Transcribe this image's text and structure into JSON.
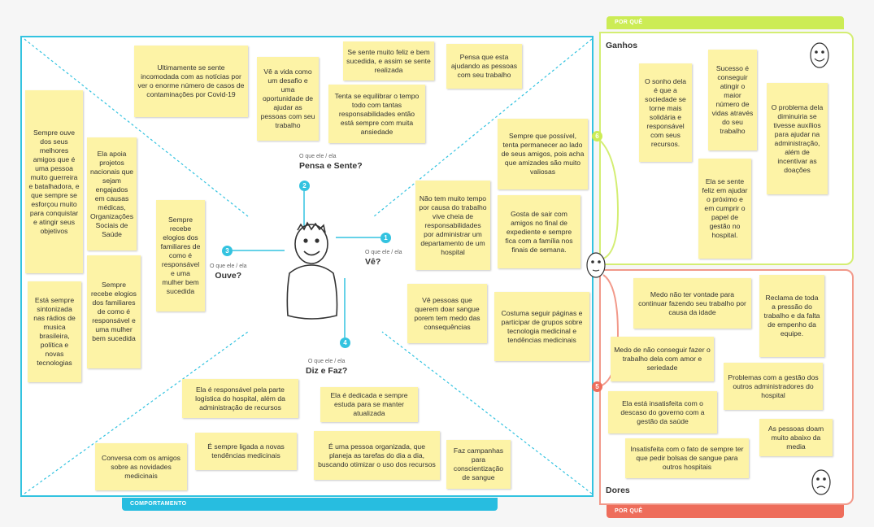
{
  "bars": {
    "por_que_top": "POR QUÊ",
    "por_que_bottom": "POR QUÊ",
    "comportamento": "COMPORTAMENTO"
  },
  "gains": {
    "title": "Ganhos"
  },
  "pains": {
    "title": "Dores"
  },
  "quadrants": {
    "pensa": {
      "label": "O que ele / ela",
      "title": "Pensa e Sente?",
      "num": "2"
    },
    "ve": {
      "label": "O que ele / ela",
      "title": "Vê?",
      "num": "1"
    },
    "ouve": {
      "label": "O que ele / ela",
      "title": "Ouve?",
      "num": "3"
    },
    "diz": {
      "label": "O que ele / ela",
      "title": "Diz e Faz?",
      "num": "4"
    },
    "ganhos_num": "6",
    "dores_num": "5"
  },
  "notes": {
    "n01": "Ultimamente se sente incomodada com as notícias por ver o enorme número de casos de contaminações por Covid-19",
    "n02": "Vê a vida como um desafio e uma oportunidade de ajudar as pessoas com seu trabalho",
    "n03": "Se sente muito feliz e bem sucedida, e assim se sente realizada",
    "n04": "Pensa que esta ajudando as pessoas com seu trabalho",
    "n05": "Tenta se equilibrar o tempo todo com tantas responsabilidades então está sempre com muita ansiedade",
    "n06": "Sempre ouve dos seus melhores amigos que é uma pessoa muito guerreira e batalhadora, e que sempre se esforçou muito para conquistar e atingir seus objetivos",
    "n07": "Ela apoia projetos nacionais que sejam engajados em causas médicas, Organizações Sociais de Saúde",
    "n08": "Sempre recebe elogios dos familiares de como é responsável e uma mulher bem sucedida",
    "n09": "Sempre recebe elogios dos familiares de como é responsável e uma mulher bem sucedida",
    "n10": "Está sempre sintonizada nas rádios de musica brasileira, política e novas tecnologias",
    "n11": "Sempre que possível, tenta permanecer ao lado de seus amigos, pois acha que amizades são muito valiosas",
    "n12": "Não tem muito tempo por causa do trabalho vive cheia de responsabilidades por administrar um departamento de um hospital",
    "n13": "Gosta de sair com amigos no final de expediente e sempre fica com a família nos finais de semana.",
    "n14": "Vê pessoas que querem doar sangue porem tem medo das consequências",
    "n15": "Costuma seguir páginas e participar de grupos sobre tecnologia medicinal e tendências medicinais",
    "n16": "Ela é responsável pela parte logística do hospital, além da administração de recursos",
    "n17": "Ela é dedicada e sempre estuda para se manter atualizada",
    "n18": "Conversa com os amigos sobre as novidades medicinais",
    "n19": "É sempre ligada a novas tendências medicinais",
    "n20": "É uma pessoa organizada, que planeja as tarefas do dia a dia, buscando otimizar o uso dos recursos",
    "n21": "Faz campanhas para conscientização de sangue",
    "g1": "O sonho dela é que a sociedade se torne mais solidária e responsável com seus recursos.",
    "g2": "Sucesso é conseguir atingir o maior número de vidas através do seu trabalho",
    "g3": "O problema dela diminuiria se tivesse auxílios para ajudar na administração, além de incentivar as doações",
    "g4": "Ela se sente feliz em ajudar o próximo e em cumprir o papel de gestão no hospital.",
    "p1": "Medo não ter vontade para continuar fazendo seu trabalho por causa da idade",
    "p2": "Reclama de toda a pressão do trabalho e da falta de empenho da equipe.",
    "p3": "Medo de não conseguir fazer o trabalho dela com amor e seriedade",
    "p4": "Problemas com a gestão dos outros administradores do hospital",
    "p5": "Ela está insatisfeita com o descaso do governo com a gestão da saúde",
    "p6": "As pessoas doam muito abaixo da media",
    "p7": "Insatisfeita com o fato de sempre ter que pedir bolsas de sangue para outros hospitais"
  },
  "colors": {
    "behavior_accent": "#33c3e0",
    "gains_accent": "#ccec55",
    "pains_accent": "#ee6d5b",
    "sticky_note": "#fdf3a6"
  },
  "icons": [
    "person-sketch-icon",
    "happy-face-icon",
    "neutral-face-icon",
    "sad-face-icon"
  ]
}
